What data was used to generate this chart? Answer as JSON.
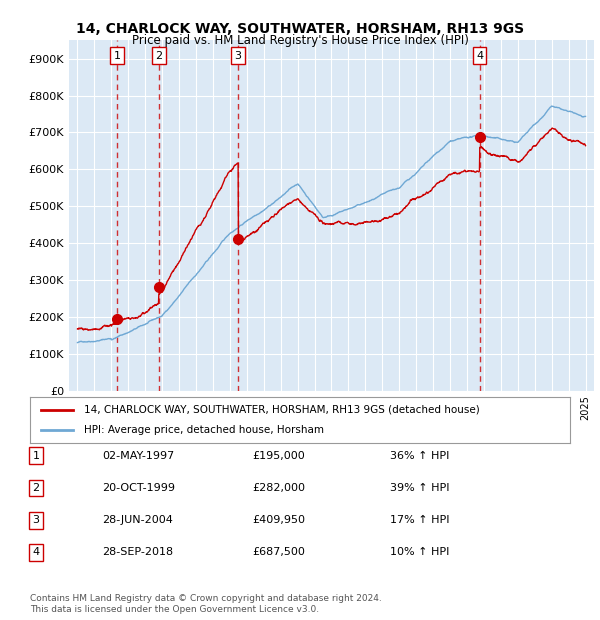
{
  "title": "14, CHARLOCK WAY, SOUTHWATER, HORSHAM, RH13 9GS",
  "subtitle": "Price paid vs. HM Land Registry's House Price Index (HPI)",
  "ylabel": "",
  "background_color": "#dce9f5",
  "plot_bg_color": "#dce9f5",
  "ylim": [
    0,
    950000
  ],
  "yticks": [
    0,
    100000,
    200000,
    300000,
    400000,
    500000,
    600000,
    700000,
    800000,
    900000
  ],
  "ytick_labels": [
    "£0",
    "£100K",
    "£200K",
    "£300K",
    "£400K",
    "£500K",
    "£600K",
    "£700K",
    "£800K",
    "£900K"
  ],
  "purchases": [
    {
      "label": "1",
      "date_num": 1997.34,
      "price": 195000,
      "date_str": "02-MAY-1997",
      "pct": "36%"
    },
    {
      "label": "2",
      "date_num": 1999.8,
      "price": 282000,
      "date_str": "20-OCT-1999",
      "pct": "39%"
    },
    {
      "label": "3",
      "date_num": 2004.49,
      "price": 409950,
      "date_str": "28-JUN-2004",
      "pct": "17%"
    },
    {
      "label": "4",
      "date_num": 2018.74,
      "price": 687500,
      "date_str": "28-SEP-2018",
      "pct": "10%"
    }
  ],
  "legend_line1": "14, CHARLOCK WAY, SOUTHWATER, HORSHAM, RH13 9GS (detached house)",
  "legend_line2": "HPI: Average price, detached house, Horsham",
  "footer": "Contains HM Land Registry data © Crown copyright and database right 2024.\nThis data is licensed under the Open Government Licence v3.0.",
  "table_rows": [
    [
      "1",
      "02-MAY-1997",
      "£195,000",
      "36% ↑ HPI"
    ],
    [
      "2",
      "20-OCT-1999",
      "£282,000",
      "39% ↑ HPI"
    ],
    [
      "3",
      "28-JUN-2004",
      "£409,950",
      "17% ↑ HPI"
    ],
    [
      "4",
      "28-SEP-2018",
      "£687,500",
      "10% ↑ HPI"
    ]
  ]
}
